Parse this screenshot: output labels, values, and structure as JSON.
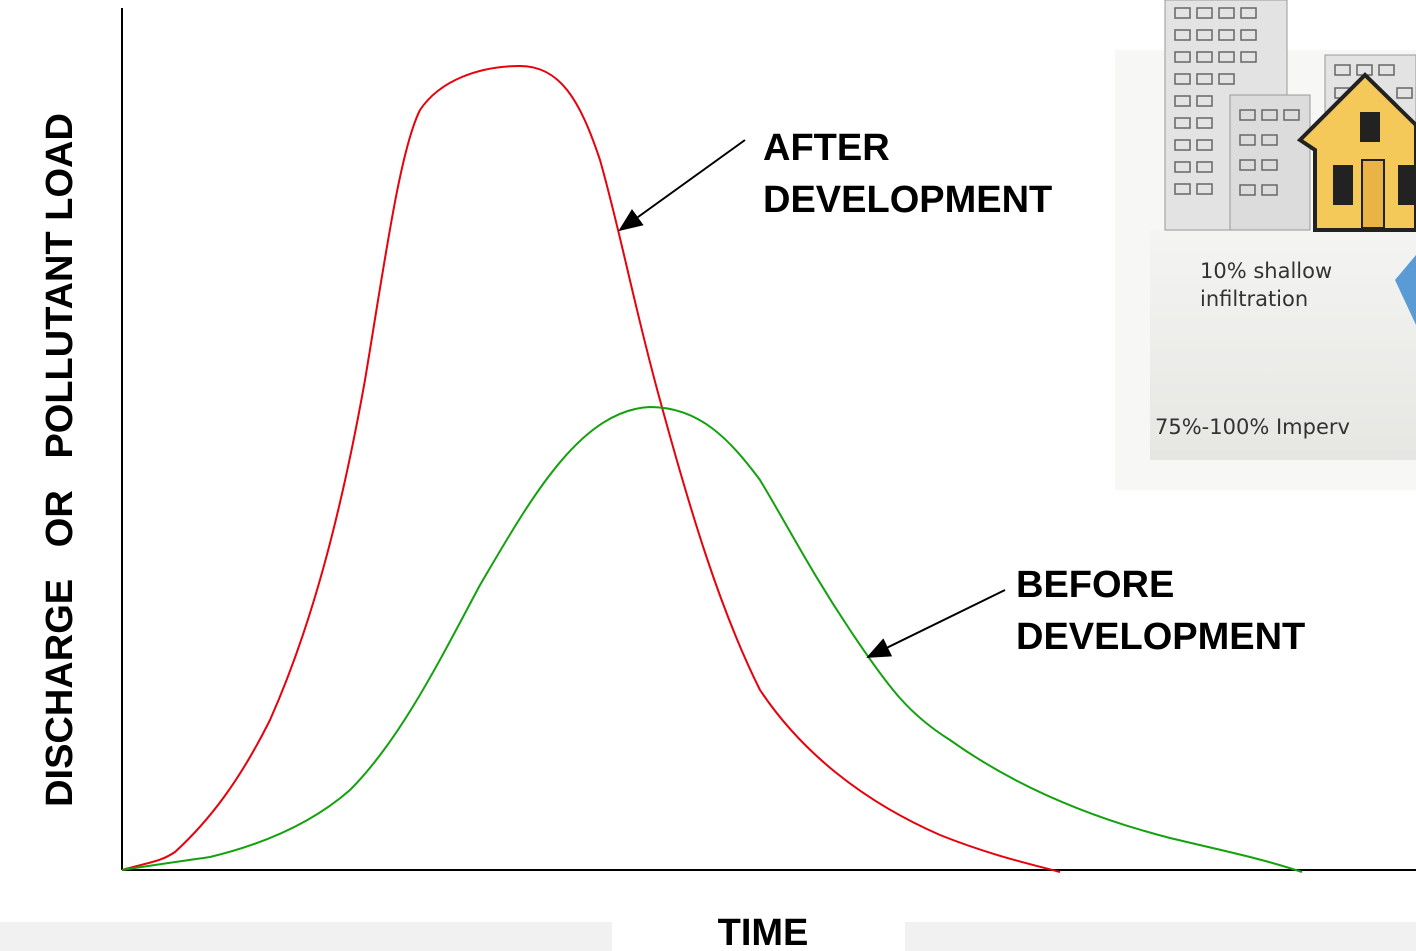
{
  "axes": {
    "y_label": "DISCHARGE   OR   POLLUTANT LOAD",
    "x_label": "TIME"
  },
  "curves": [
    {
      "label_lines": [
        "AFTER",
        "DEVELOPMENT"
      ]
    },
    {
      "label_lines": [
        "BEFORE",
        "DEVELOPMENT"
      ]
    }
  ],
  "inset": {
    "infiltration_lines": [
      "10% shallow",
      "infiltration"
    ],
    "cover": "75%-100% Imperv"
  }
}
